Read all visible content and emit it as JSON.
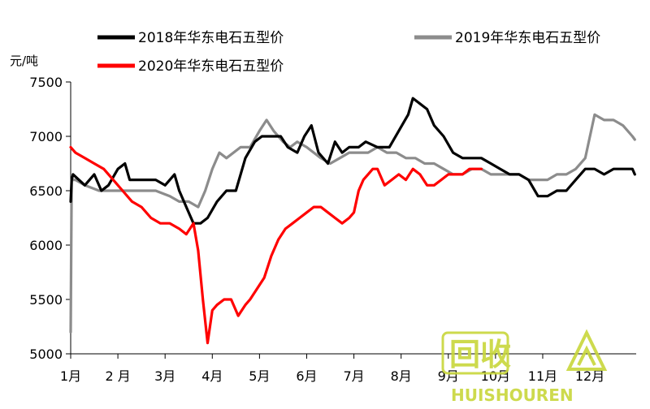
{
  "chart_data": {
    "type": "line",
    "ylabel": "元/吨",
    "ylim": [
      5000,
      7500
    ],
    "yticks": [
      5000,
      5500,
      6000,
      6500,
      7000,
      7500
    ],
    "xlim": [
      1,
      12.98
    ],
    "x_tick_labels": [
      "1月",
      "2 月",
      "3月",
      "4月",
      "5月",
      "6月",
      "7月",
      "8月",
      "9月",
      "10月",
      "11月",
      "12月"
    ],
    "x_tick_values": [
      1,
      2,
      3,
      4,
      5,
      6,
      7,
      8,
      9,
      10,
      11,
      12
    ],
    "legend_placement": "top",
    "series": [
      {
        "name": "2018年华东电石五型价",
        "color": "#000000",
        "x": [
          1.0,
          1.02,
          1.05,
          1.3,
          1.5,
          1.65,
          1.8,
          2.0,
          2.15,
          2.25,
          2.4,
          2.6,
          2.8,
          3.0,
          3.2,
          3.3,
          3.5,
          3.6,
          3.75,
          3.9,
          4.1,
          4.3,
          4.5,
          4.7,
          4.9,
          5.05,
          5.25,
          5.45,
          5.6,
          5.8,
          5.95,
          6.1,
          6.25,
          6.45,
          6.6,
          6.75,
          6.9,
          7.1,
          7.25,
          7.5,
          7.75,
          7.95,
          8.15,
          8.25,
          8.4,
          8.55,
          8.7,
          8.9,
          9.1,
          9.3,
          9.5,
          9.7,
          9.9,
          10.1,
          10.3,
          10.5,
          10.7,
          10.9,
          11.1,
          11.3,
          11.5,
          11.7,
          11.9,
          12.1,
          12.3,
          12.5,
          12.7,
          12.9,
          12.95
        ],
        "values": [
          6400,
          6600,
          6650,
          6550,
          6650,
          6500,
          6550,
          6700,
          6750,
          6600,
          6600,
          6600,
          6600,
          6550,
          6650,
          6500,
          6300,
          6200,
          6200,
          6250,
          6400,
          6500,
          6500,
          6800,
          6950,
          7000,
          7000,
          7000,
          6900,
          6850,
          7000,
          7100,
          6850,
          6750,
          6950,
          6850,
          6900,
          6900,
          6950,
          6900,
          6900,
          7050,
          7200,
          7350,
          7300,
          7250,
          7100,
          7000,
          6850,
          6800,
          6800,
          6800,
          6750,
          6700,
          6650,
          6650,
          6600,
          6450,
          6450,
          6500,
          6500,
          6600,
          6700,
          6700,
          6650,
          6700,
          6700,
          6700,
          6650
        ]
      },
      {
        "name": "2019年华东电石五型价",
        "color": "#8c8c8c",
        "x": [
          1.0,
          1.02,
          1.1,
          1.3,
          1.6,
          1.9,
          2.2,
          2.5,
          2.8,
          3.1,
          3.3,
          3.5,
          3.7,
          3.85,
          4.0,
          4.15,
          4.3,
          4.6,
          4.8,
          5.0,
          5.15,
          5.3,
          5.5,
          5.65,
          5.8,
          6.0,
          6.15,
          6.3,
          6.5,
          6.7,
          6.9,
          7.1,
          7.3,
          7.5,
          7.7,
          7.9,
          8.1,
          8.3,
          8.5,
          8.7,
          8.9,
          9.1,
          9.3,
          9.5,
          9.7,
          9.9,
          10.1,
          10.3,
          10.5,
          10.7,
          10.9,
          11.1,
          11.3,
          11.5,
          11.7,
          11.9,
          12.1,
          12.3,
          12.5,
          12.7,
          12.9,
          12.95
        ],
        "values": [
          5200,
          6600,
          6600,
          6550,
          6500,
          6500,
          6500,
          6500,
          6500,
          6450,
          6400,
          6400,
          6350,
          6500,
          6700,
          6850,
          6800,
          6900,
          6900,
          7050,
          7150,
          7050,
          6950,
          6900,
          6950,
          6900,
          6850,
          6800,
          6750,
          6800,
          6850,
          6850,
          6850,
          6900,
          6850,
          6850,
          6800,
          6800,
          6750,
          6750,
          6700,
          6650,
          6650,
          6700,
          6700,
          6650,
          6650,
          6650,
          6650,
          6600,
          6600,
          6600,
          6650,
          6650,
          6700,
          6800,
          7200,
          7150,
          7150,
          7100,
          7000,
          6970
        ]
      },
      {
        "name": "2020年华东电石五型价",
        "color": "#ff0000",
        "x": [
          1.0,
          1.1,
          1.3,
          1.5,
          1.7,
          1.9,
          2.1,
          2.3,
          2.5,
          2.7,
          2.9,
          3.1,
          3.3,
          3.45,
          3.6,
          3.7,
          3.8,
          3.9,
          4.0,
          4.1,
          4.25,
          4.4,
          4.55,
          4.7,
          4.8,
          4.95,
          5.1,
          5.25,
          5.4,
          5.55,
          5.7,
          5.85,
          6.0,
          6.15,
          6.3,
          6.45,
          6.6,
          6.75,
          6.9,
          7.0,
          7.1,
          7.2,
          7.3,
          7.4,
          7.5,
          7.65,
          7.8,
          7.95,
          8.1,
          8.25,
          8.4,
          8.55,
          8.7,
          8.85,
          9.0,
          9.15,
          9.3,
          9.45,
          9.6,
          9.7
        ],
        "values": [
          6900,
          6850,
          6800,
          6750,
          6700,
          6600,
          6500,
          6400,
          6350,
          6250,
          6200,
          6200,
          6150,
          6100,
          6200,
          5950,
          5500,
          5100,
          5400,
          5450,
          5500,
          5500,
          5350,
          5450,
          5500,
          5600,
          5700,
          5900,
          6050,
          6150,
          6200,
          6250,
          6300,
          6350,
          6350,
          6300,
          6250,
          6200,
          6250,
          6300,
          6500,
          6600,
          6650,
          6700,
          6700,
          6550,
          6600,
          6650,
          6600,
          6700,
          6650,
          6550,
          6550,
          6600,
          6650,
          6650,
          6650,
          6700,
          6700,
          6700
        ]
      }
    ]
  },
  "watermark": {
    "logo_text": "回收",
    "brand_text": "HUISHOUREN",
    "color": "#c8d63a"
  }
}
